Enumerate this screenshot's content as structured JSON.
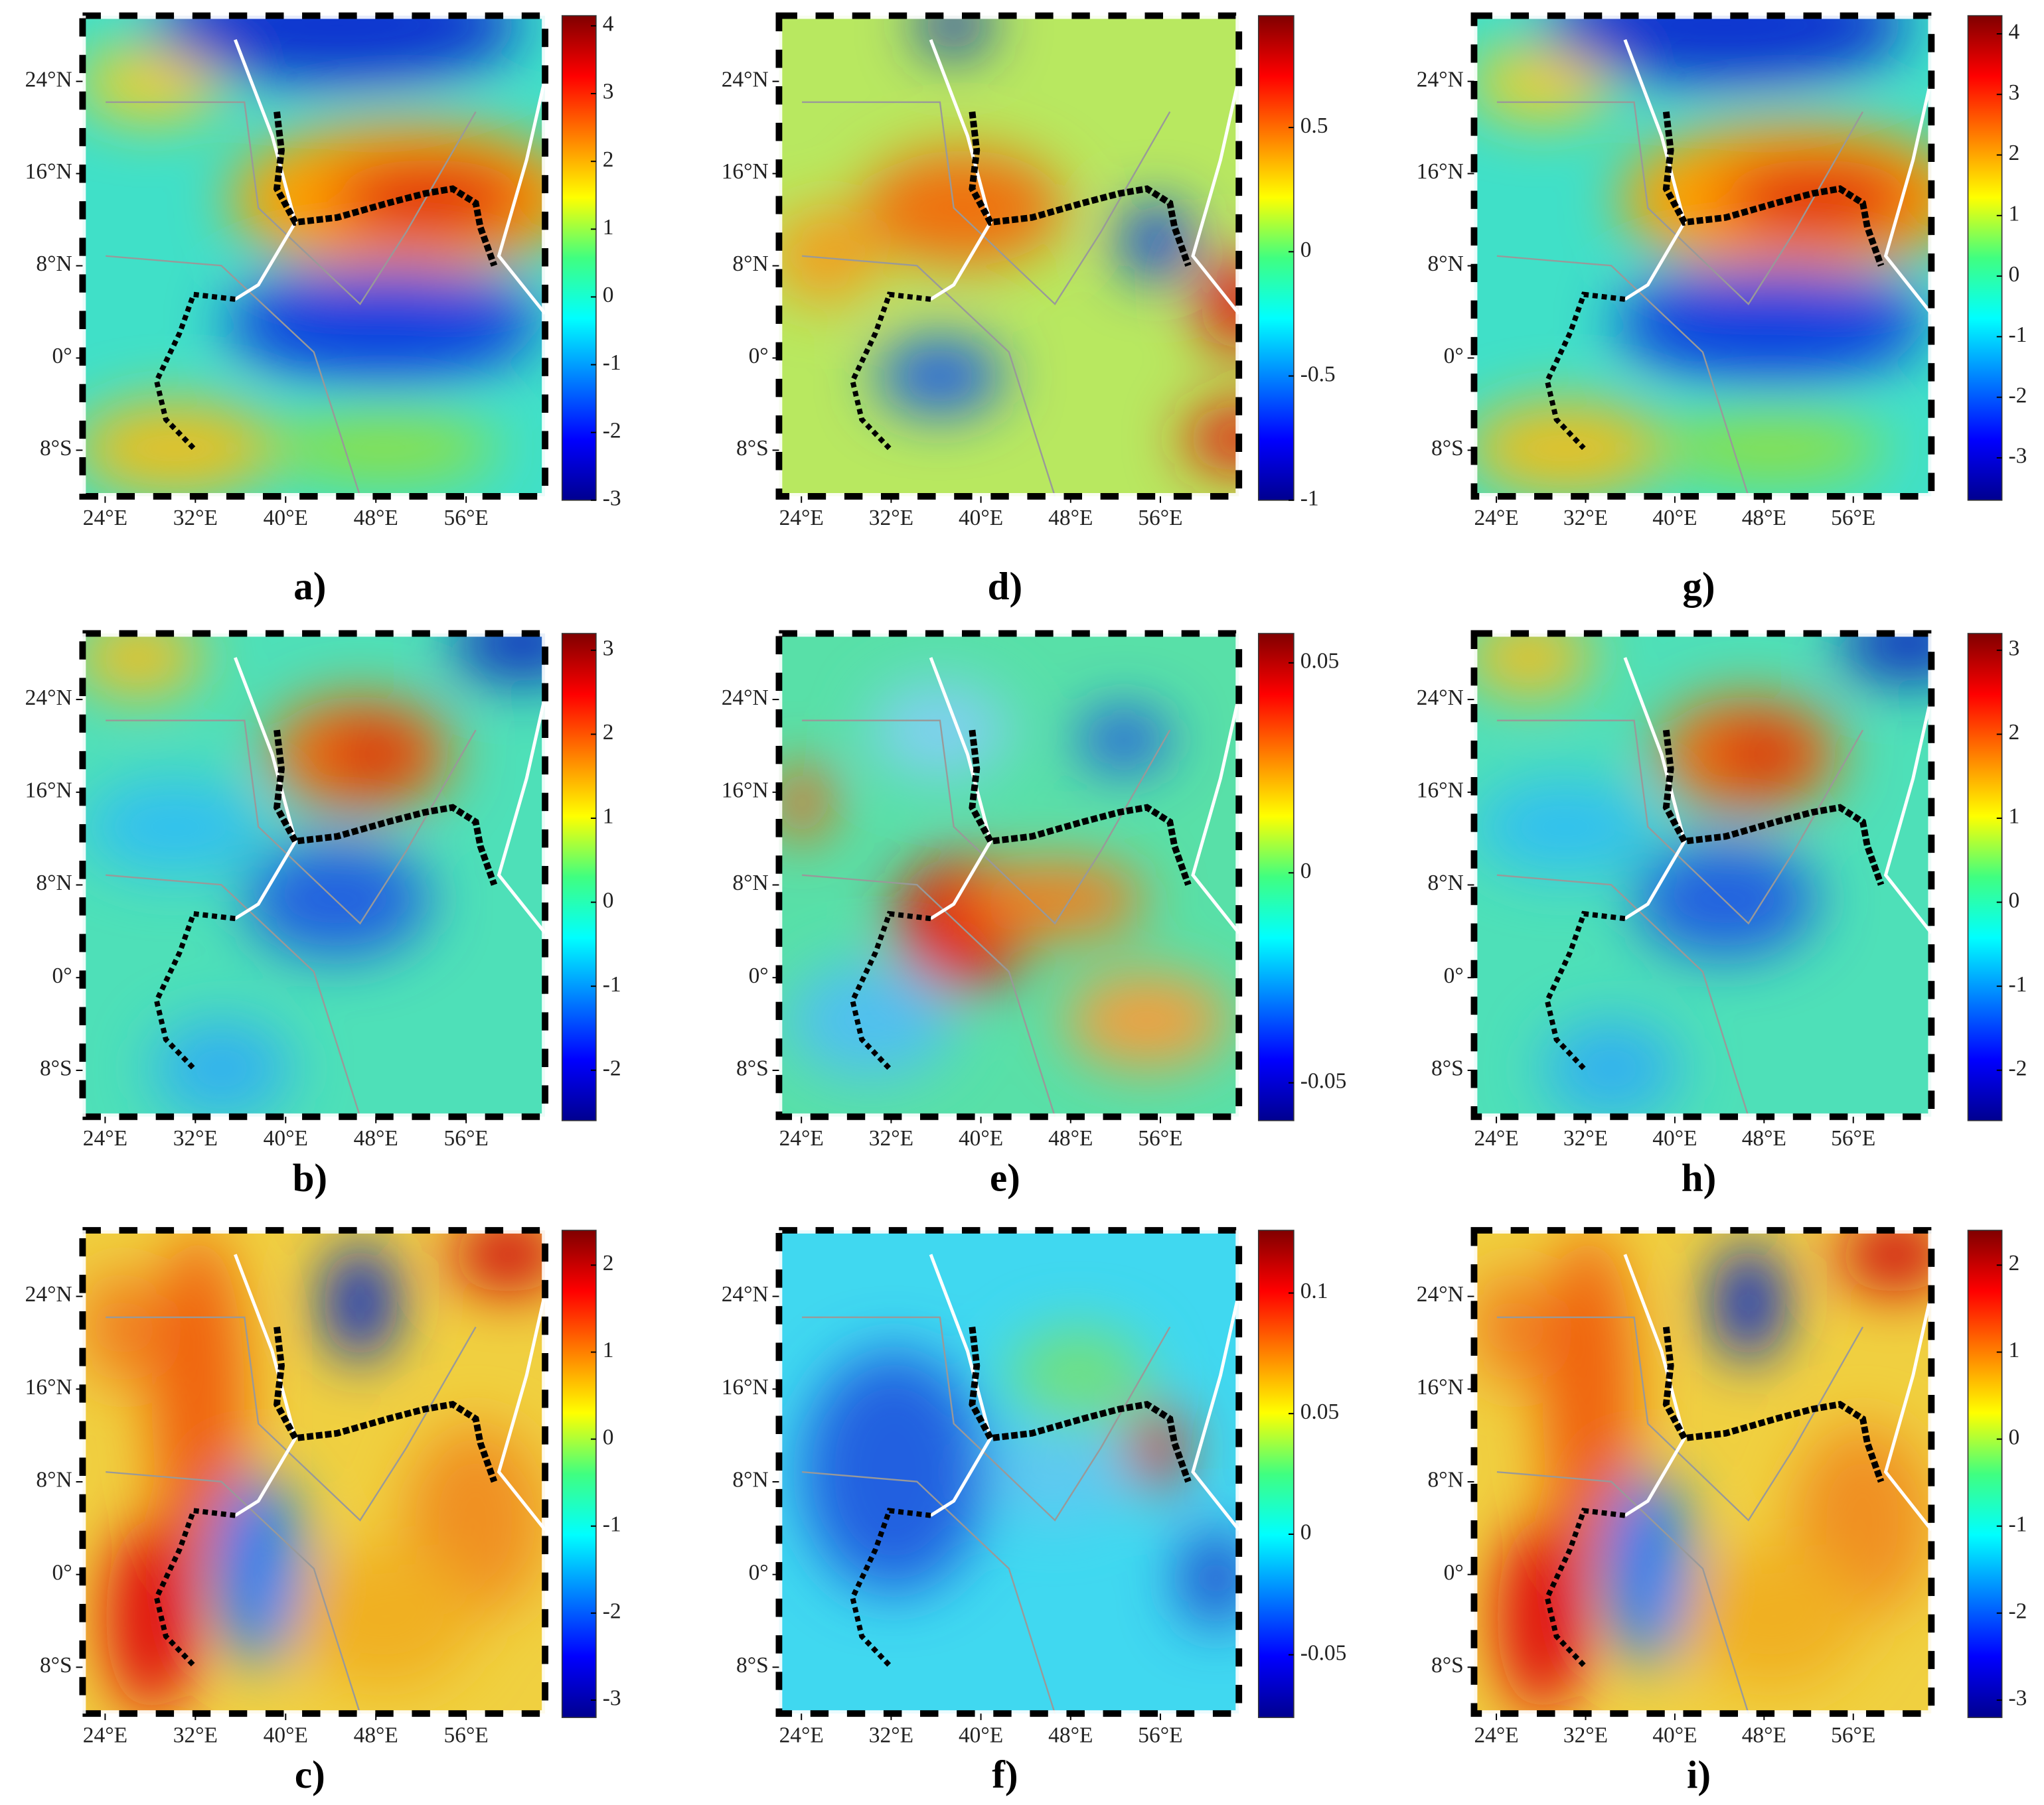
{
  "panels": [
    {
      "label": "a)",
      "colorbar": {
        "lim": [
          -3,
          4.15
        ],
        "ticks": [
          -3,
          -2,
          -1,
          0,
          1,
          2,
          3,
          4
        ]
      }
    },
    {
      "label": "b)",
      "colorbar": {
        "lim": [
          -2.6,
          3.2
        ],
        "ticks": [
          -2,
          -1,
          0,
          1,
          2,
          3
        ]
      }
    },
    {
      "label": "c)",
      "colorbar": {
        "lim": [
          -3.2,
          2.4
        ],
        "ticks": [
          -3,
          -2,
          -1,
          0,
          1,
          2
        ]
      }
    },
    {
      "label": "d)",
      "colorbar": {
        "lim": [
          -1,
          0.95
        ],
        "ticks": [
          -1,
          -0.5,
          0,
          0.5
        ]
      }
    },
    {
      "label": "e)",
      "colorbar": {
        "lim": [
          -0.059,
          0.057
        ],
        "ticks": [
          -0.05,
          0,
          0.05
        ]
      }
    },
    {
      "label": "f)",
      "colorbar": {
        "lim": [
          -0.076,
          0.126
        ],
        "ticks": [
          -0.05,
          0,
          0.05,
          0.1
        ]
      }
    },
    {
      "label": "g)",
      "colorbar": {
        "lim": [
          -3.7,
          4.3
        ],
        "ticks": [
          -3,
          -2,
          -1,
          0,
          1,
          2,
          3,
          4
        ]
      }
    },
    {
      "label": "h)",
      "colorbar": {
        "lim": [
          -2.6,
          3.2
        ],
        "ticks": [
          -2,
          -1,
          0,
          1,
          2,
          3
        ]
      }
    },
    {
      "label": "i)",
      "colorbar": {
        "lim": [
          -3.2,
          2.4
        ],
        "ticks": [
          -3,
          -2,
          -1,
          0,
          1,
          2
        ]
      }
    }
  ],
  "map_axes": {
    "xlim": [
      22,
      63
    ],
    "ylim": [
      -12,
      29.7
    ],
    "xticks": [
      {
        "value": 24,
        "label": "24°E"
      },
      {
        "value": 32,
        "label": "32°E"
      },
      {
        "value": 40,
        "label": "40°E"
      },
      {
        "value": 48,
        "label": "48°E"
      },
      {
        "value": 56,
        "label": "56°E"
      }
    ],
    "yticks": [
      {
        "value": 24,
        "label": "24°N"
      },
      {
        "value": 16,
        "label": "16°N"
      },
      {
        "value": 8,
        "label": "8°N"
      },
      {
        "value": 0,
        "label": "0°"
      },
      {
        "value": -8,
        "label": "8°S"
      }
    ]
  }
}
